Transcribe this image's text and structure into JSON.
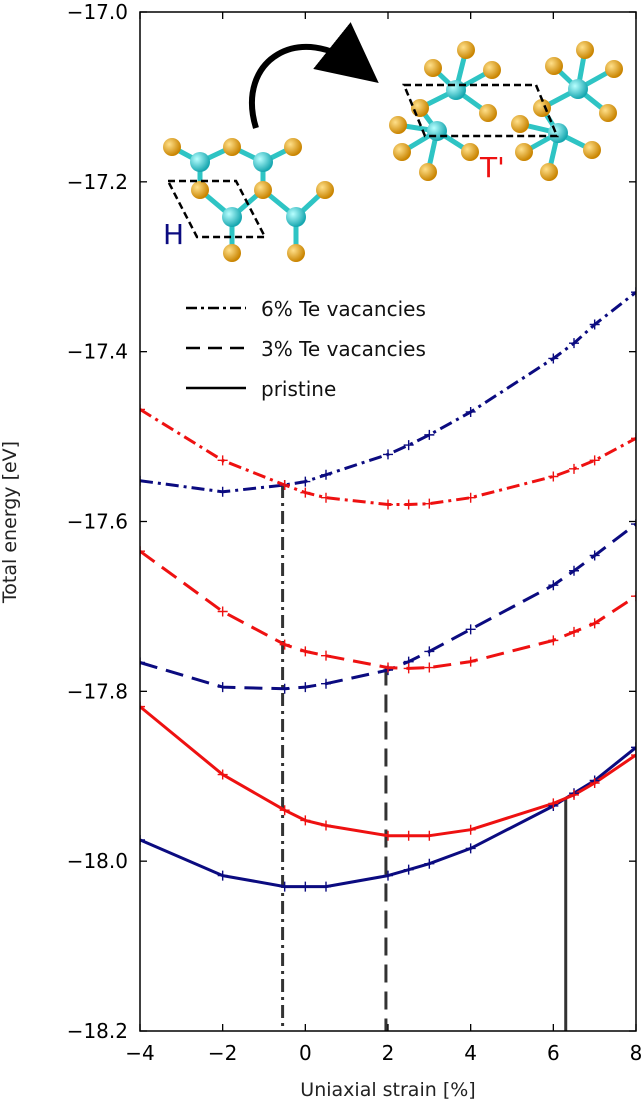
{
  "chart_data": {
    "type": "line",
    "xlabel": "Uniaxial strain [%]",
    "ylabel": "Total energy [eV]",
    "xlim": [
      -4,
      8
    ],
    "ylim": [
      -18.2,
      -17.0
    ],
    "xticks": [
      -4,
      -2,
      0,
      2,
      4,
      6,
      8
    ],
    "yticks": [
      -18.2,
      -18.0,
      -17.8,
      -17.6,
      -17.4,
      -17.2,
      -17.0
    ],
    "xtick_labels": [
      "−4",
      "−2",
      "0",
      "2",
      "4",
      "6",
      "8"
    ],
    "ytick_labels": [
      "−18.2",
      "−18.0",
      "−17.8",
      "−17.6",
      "−17.4",
      "−17.2",
      "−17.0"
    ],
    "legend": {
      "placement": "upper-middle",
      "entries": [
        {
          "label": "6% Te vacancies",
          "style": "dashdot"
        },
        {
          "label": "3% Te vacancies",
          "style": "dashed"
        },
        {
          "label": "pristine",
          "style": "solid"
        }
      ]
    },
    "series": [
      {
        "phase": "H",
        "group": "pristine",
        "style": "solid",
        "color": "#0b0b80",
        "x": [
          -4,
          -2,
          -0.5,
          0,
          0.5,
          2,
          2.5,
          3,
          4,
          6,
          6.5,
          7,
          8
        ],
        "y": [
          -17.975,
          -18.017,
          -18.03,
          -18.03,
          -18.03,
          -18.017,
          -18.01,
          -18.003,
          -17.985,
          -17.935,
          -17.92,
          -17.905,
          -17.866
        ]
      },
      {
        "phase": "T'",
        "group": "pristine",
        "style": "solid",
        "color": "#ee1111",
        "x": [
          -4,
          -2,
          -0.5,
          0,
          0.5,
          2,
          2.5,
          3,
          4,
          6,
          6.5,
          7,
          8
        ],
        "y": [
          -17.818,
          -17.898,
          -17.94,
          -17.952,
          -17.958,
          -17.97,
          -17.97,
          -17.97,
          -17.963,
          -17.932,
          -17.922,
          -17.908,
          -17.875
        ]
      },
      {
        "phase": "H",
        "group": "3% Te vacancies",
        "style": "dashed",
        "color": "#0b0b80",
        "x": [
          -4,
          -2,
          -0.5,
          0,
          0.5,
          2,
          2.5,
          3,
          4,
          6,
          6.5,
          7,
          8
        ],
        "y": [
          -17.766,
          -17.795,
          -17.797,
          -17.795,
          -17.791,
          -17.775,
          -17.765,
          -17.753,
          -17.727,
          -17.675,
          -17.658,
          -17.64,
          -17.603
        ]
      },
      {
        "phase": "T'",
        "group": "3% Te vacancies",
        "style": "dashed",
        "color": "#ee1111",
        "x": [
          -4,
          -2,
          -0.5,
          0,
          0.5,
          2,
          2.5,
          3,
          4,
          6,
          6.5,
          7,
          8
        ],
        "y": [
          -17.635,
          -17.706,
          -17.745,
          -17.753,
          -17.758,
          -17.772,
          -17.773,
          -17.772,
          -17.765,
          -17.74,
          -17.73,
          -17.72,
          -17.688
        ]
      },
      {
        "phase": "H",
        "group": "6% Te vacancies",
        "style": "dashdot",
        "color": "#0b0b80",
        "x": [
          -4,
          -2,
          -0.5,
          0,
          0.5,
          2,
          2.5,
          3,
          4,
          6,
          6.5,
          7,
          8
        ],
        "y": [
          -17.552,
          -17.565,
          -17.557,
          -17.553,
          -17.545,
          -17.521,
          -17.51,
          -17.498,
          -17.471,
          -17.408,
          -17.39,
          -17.368,
          -17.33
        ]
      },
      {
        "phase": "T'",
        "group": "6% Te vacancies",
        "style": "dashdot",
        "color": "#ee1111",
        "x": [
          -4,
          -2,
          -0.5,
          0,
          0.5,
          2,
          2.5,
          3,
          4,
          6,
          6.5,
          7,
          8
        ],
        "y": [
          -17.468,
          -17.528,
          -17.557,
          -17.566,
          -17.572,
          -17.58,
          -17.58,
          -17.579,
          -17.572,
          -17.547,
          -17.538,
          -17.528,
          -17.502
        ]
      }
    ],
    "transition_lines": [
      {
        "group": "6% Te vacancies",
        "style": "dashdot",
        "x": -0.55,
        "y": -17.557
      },
      {
        "group": "3% Te vacancies",
        "style": "dashed",
        "x": 1.95,
        "y": -17.772
      },
      {
        "group": "pristine",
        "style": "solid",
        "x": 6.3,
        "y": -17.925
      }
    ],
    "inset": {
      "h_label": "H",
      "t_label": "T'",
      "h_label_color": "#0b0b80",
      "t_label_color": "#ee1111",
      "te_atom_color": "#e8a317",
      "mo_atom_color": "#2ec4c4"
    }
  }
}
